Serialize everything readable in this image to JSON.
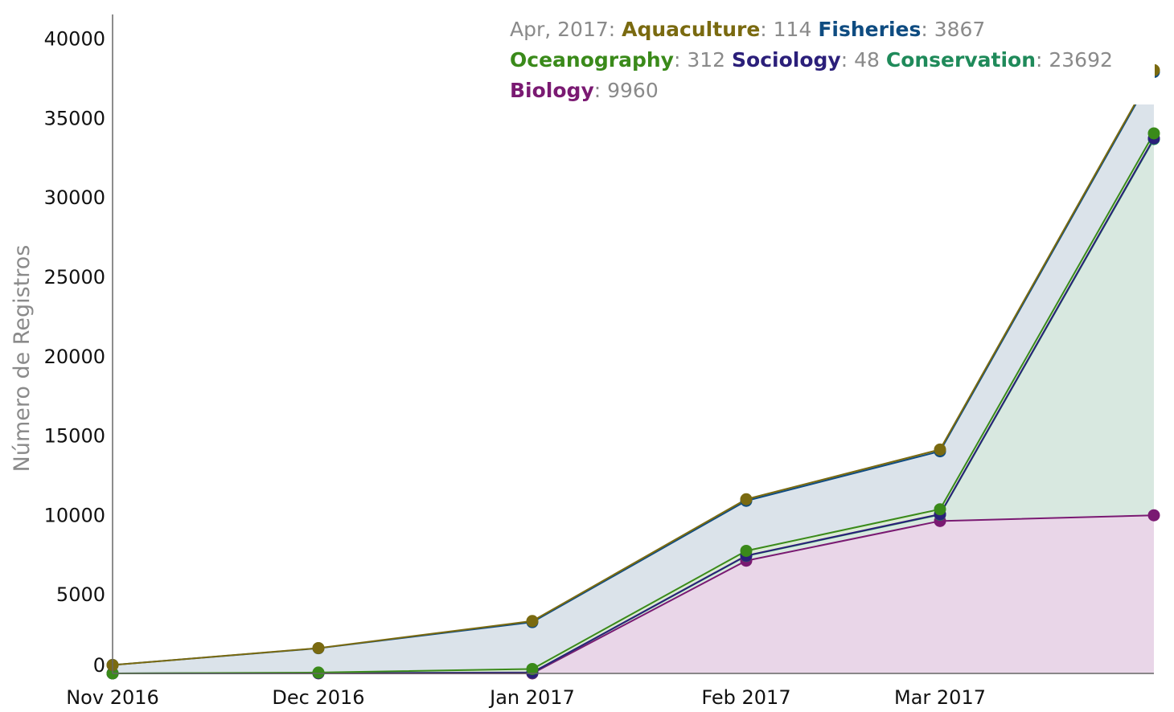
{
  "chart_data": {
    "type": "area",
    "stacked": true,
    "categories": [
      "Nov 2016",
      "Dec 2016",
      "Jan 2017",
      "Feb 2017",
      "Mar 2017",
      "Apr 2017"
    ],
    "ylabel": "Número de Registros",
    "ylim": [
      0,
      41500
    ],
    "yticks": [
      0,
      5000,
      10000,
      15000,
      20000,
      25000,
      30000,
      35000,
      40000
    ],
    "grid": false,
    "series": [
      {
        "name": "Biology",
        "color": "#7a1a72",
        "fill": "#e9d6e8",
        "values": [
          0,
          0,
          0,
          7100,
          9600,
          9960
        ]
      },
      {
        "name": "Conservation",
        "color": "#1f8a5a",
        "fill": "#d8e8e0",
        "values": [
          0,
          20,
          50,
          300,
          400,
          23692
        ]
      },
      {
        "name": "Sociology",
        "color": "#2b1f7a",
        "fill": "#e0dff0",
        "values": [
          0,
          5,
          10,
          20,
          30,
          48
        ]
      },
      {
        "name": "Oceanography",
        "color": "#3a8a1a",
        "fill": "#dcebd6",
        "values": [
          0,
          30,
          220,
          300,
          310,
          312
        ]
      },
      {
        "name": "Fisheries",
        "color": "#0f4c81",
        "fill": "#dbe3ea",
        "values": [
          530,
          1530,
          2950,
          3150,
          3650,
          3867
        ]
      },
      {
        "name": "Aquaculture",
        "color": "#7a6a10",
        "fill": "#ece8d2",
        "values": [
          0,
          10,
          70,
          100,
          110,
          114
        ]
      }
    ],
    "legend": {
      "placement": "top-right",
      "header": "Apr, 2017",
      "lines": [
        [
          "Aquaculture",
          "Fisheries"
        ],
        [
          "Oceanography",
          "Sociology",
          "Conservation"
        ],
        [
          "Biology"
        ]
      ]
    }
  }
}
